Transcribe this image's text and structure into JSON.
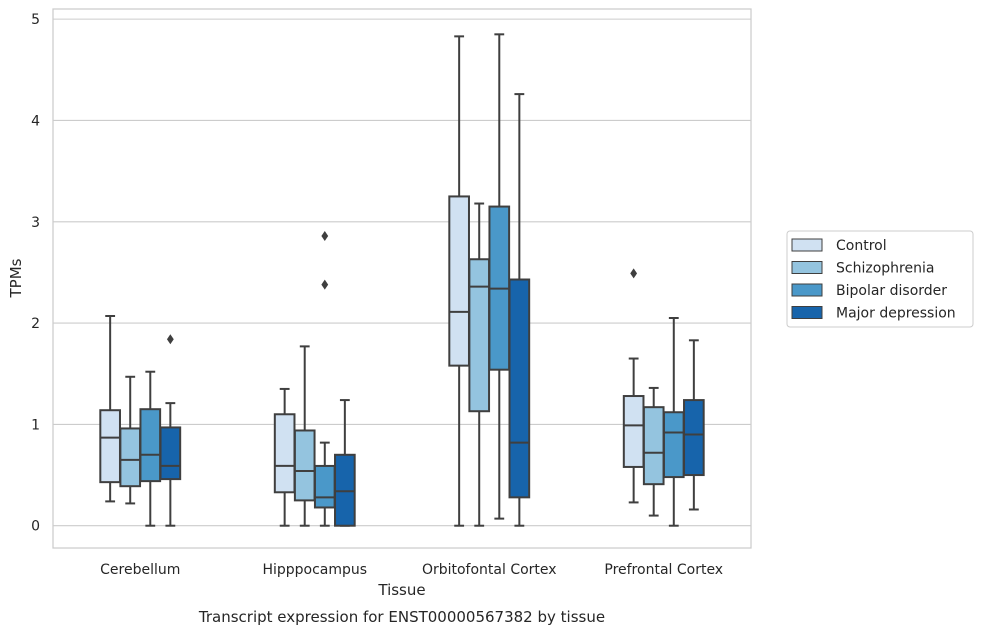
{
  "caption": "Transcript expression for ENST00000567382 by tissue",
  "chart_data": {
    "type": "box",
    "xlabel": "Tissue",
    "ylabel": "TPMs",
    "ylim": [
      -0.22,
      5.1
    ],
    "yticks": [
      0,
      1,
      2,
      3,
      4,
      5
    ],
    "grid": "horizontal",
    "legend_position": "right",
    "categories": [
      "Cerebellum",
      "Hipppocampus",
      "Orbitofontal Cortex",
      "Prefrontal Cortex"
    ],
    "series": [
      {
        "name": "Control",
        "color": "#d0e1f2",
        "boxes": [
          {
            "whisker_low": 0.24,
            "q1": 0.43,
            "median": 0.87,
            "q3": 1.14,
            "whisker_high": 2.07,
            "outliers": []
          },
          {
            "whisker_low": 0.0,
            "q1": 0.33,
            "median": 0.59,
            "q3": 1.1,
            "whisker_high": 1.35,
            "outliers": []
          },
          {
            "whisker_low": 0.0,
            "q1": 1.58,
            "median": 2.11,
            "q3": 3.25,
            "whisker_high": 4.83,
            "outliers": []
          },
          {
            "whisker_low": 0.23,
            "q1": 0.58,
            "median": 0.99,
            "q3": 1.28,
            "whisker_high": 1.65,
            "outliers": [
              2.49
            ]
          }
        ]
      },
      {
        "name": "Schizophrenia",
        "color": "#94c4df",
        "boxes": [
          {
            "whisker_low": 0.22,
            "q1": 0.39,
            "median": 0.65,
            "q3": 0.96,
            "whisker_high": 1.47,
            "outliers": []
          },
          {
            "whisker_low": 0.0,
            "q1": 0.25,
            "median": 0.54,
            "q3": 0.94,
            "whisker_high": 1.77,
            "outliers": []
          },
          {
            "whisker_low": 0.0,
            "q1": 1.13,
            "median": 2.36,
            "q3": 2.63,
            "whisker_high": 3.18,
            "outliers": []
          },
          {
            "whisker_low": 0.1,
            "q1": 0.41,
            "median": 0.72,
            "q3": 1.17,
            "whisker_high": 1.36,
            "outliers": []
          }
        ]
      },
      {
        "name": "Bipolar disorder",
        "color": "#4a98c9",
        "boxes": [
          {
            "whisker_low": 0.0,
            "q1": 0.44,
            "median": 0.7,
            "q3": 1.15,
            "whisker_high": 1.52,
            "outliers": []
          },
          {
            "whisker_low": 0.0,
            "q1": 0.18,
            "median": 0.28,
            "q3": 0.59,
            "whisker_high": 0.82,
            "outliers": [
              2.38,
              2.86
            ]
          },
          {
            "whisker_low": 0.07,
            "q1": 1.54,
            "median": 2.34,
            "q3": 3.15,
            "whisker_high": 4.85,
            "outliers": []
          },
          {
            "whisker_low": 0.0,
            "q1": 0.48,
            "median": 0.92,
            "q3": 1.12,
            "whisker_high": 2.05,
            "outliers": []
          }
        ]
      },
      {
        "name": "Major depression",
        "color": "#1764ab",
        "boxes": [
          {
            "whisker_low": 0.0,
            "q1": 0.46,
            "median": 0.59,
            "q3": 0.97,
            "whisker_high": 1.21,
            "outliers": [
              1.84
            ]
          },
          {
            "whisker_low": 0.0,
            "q1": 0.0,
            "median": 0.34,
            "q3": 0.7,
            "whisker_high": 1.24,
            "outliers": []
          },
          {
            "whisker_low": 0.0,
            "q1": 0.28,
            "median": 0.82,
            "q3": 2.43,
            "whisker_high": 4.26,
            "outliers": []
          },
          {
            "whisker_low": 0.16,
            "q1": 0.5,
            "median": 0.9,
            "q3": 1.24,
            "whisker_high": 1.83,
            "outliers": []
          }
        ]
      }
    ]
  }
}
